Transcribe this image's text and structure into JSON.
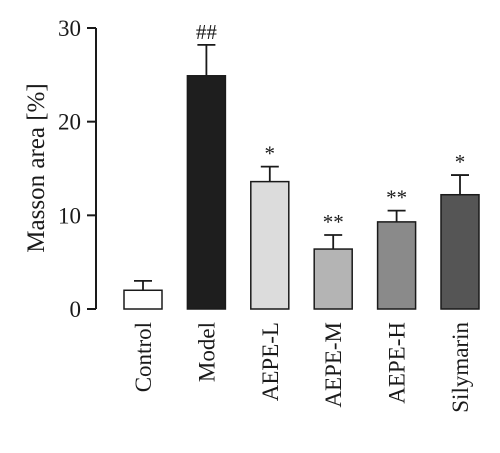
{
  "chart_data": {
    "type": "bar",
    "ylabel": "Masson area [%]",
    "ylim": [
      0,
      30
    ],
    "yticks": [
      0,
      10,
      20,
      30
    ],
    "grid": false,
    "categories": [
      "Control",
      "Model",
      "AEPE-L",
      "AEPE-M",
      "AEPE-H",
      "Silymarin"
    ],
    "values": [
      2.0,
      24.9,
      13.6,
      6.4,
      9.3,
      12.2
    ],
    "errors": [
      1.0,
      3.3,
      1.6,
      1.5,
      1.2,
      2.1
    ],
    "significance": [
      "",
      "##",
      "*",
      "**",
      "**",
      "*"
    ],
    "colors": [
      "#ffffff",
      "#1e1e1e",
      "#dcdcdc",
      "#b4b4b4",
      "#8a8a8a",
      "#555555"
    ]
  }
}
